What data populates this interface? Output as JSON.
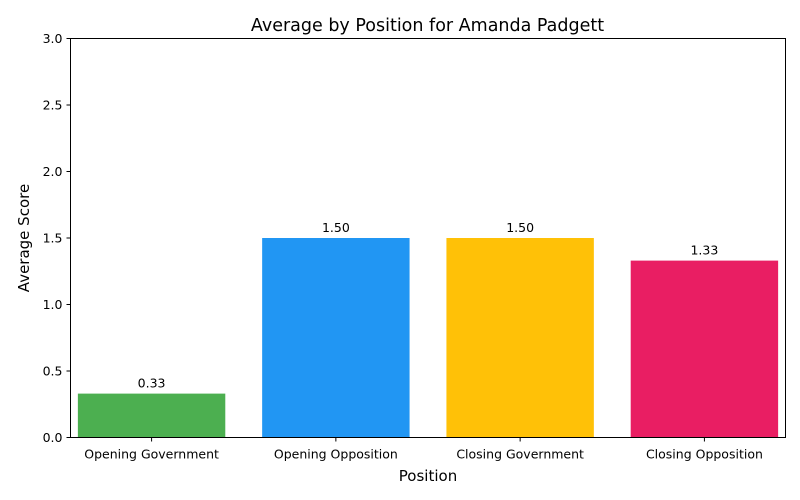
{
  "chart_data": {
    "type": "bar",
    "title": "Average by Position for Amanda Padgett",
    "xlabel": "Position",
    "ylabel": "Average Score",
    "categories": [
      "Opening Government",
      "Opening Opposition",
      "Closing Government",
      "Closing Opposition"
    ],
    "values": [
      0.33,
      1.5,
      1.5,
      1.33
    ],
    "value_labels": [
      "0.33",
      "1.50",
      "1.50",
      "1.33"
    ],
    "colors": [
      "#4caf50",
      "#2196f3",
      "#ffc107",
      "#e91e63"
    ],
    "ylim": [
      0,
      3
    ],
    "yticks": [
      0.0,
      0.5,
      1.0,
      1.5,
      2.0,
      2.5,
      3.0
    ],
    "ytick_labels": [
      "0.0",
      "0.5",
      "1.0",
      "1.5",
      "2.0",
      "2.5",
      "3.0"
    ],
    "grid": false,
    "legend": "none"
  }
}
